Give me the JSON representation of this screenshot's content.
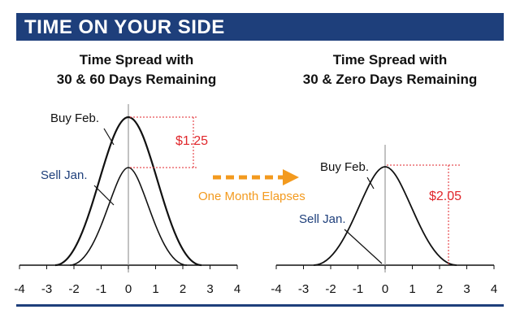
{
  "banner": {
    "title": "TIME ON YOUR SIDE"
  },
  "left_panel": {
    "title_line1": "Time Spread with",
    "title_line2": "30 & 60 Days Remaining",
    "buy_label": "Buy Feb.",
    "sell_label": "Sell Jan.",
    "price_diff": "$1.25"
  },
  "right_panel": {
    "title_line1": "Time Spread with",
    "title_line2": "30 & Zero Days Remaining",
    "buy_label": "Buy Feb.",
    "sell_label": "Sell Jan.",
    "price_diff": "$2.05"
  },
  "middle": {
    "caption": "One Month Elapses"
  },
  "axis_ticks": [
    "-4",
    "-3",
    "-2",
    "-1",
    "0",
    "1",
    "2",
    "3",
    "4"
  ],
  "colors": {
    "banner": "#1e3f7b",
    "price": "#e0262b",
    "arrow": "#f39a1e",
    "label_blue": "#1e3f7b",
    "curve": "#111111"
  }
}
